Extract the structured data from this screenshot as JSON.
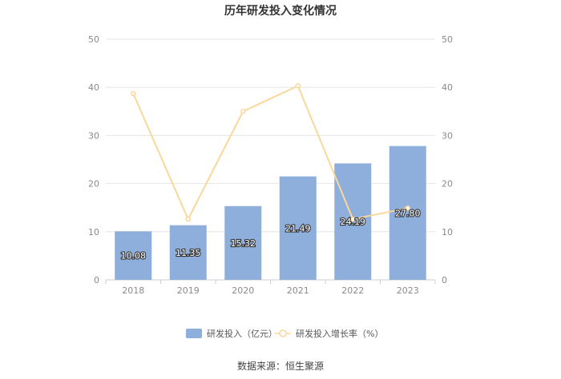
{
  "source_text": "数据来源：恒生聚源",
  "colors": {
    "bar": "#8eaedc",
    "line": "#fad79b",
    "grid": "#e6e6e6",
    "axis": "#cccccc"
  },
  "chart_data": {
    "type": "bar",
    "title": "历年研发投入变化情况",
    "categories": [
      "2018",
      "2019",
      "2020",
      "2021",
      "2022",
      "2023"
    ],
    "series": [
      {
        "name": "研发投入（亿元）",
        "type": "bar",
        "axis": "left",
        "values": [
          10.08,
          11.35,
          15.32,
          21.49,
          24.19,
          27.8
        ],
        "labels": [
          "10.08",
          "11.35",
          "15.32",
          "21.49",
          "24.19",
          "27.80"
        ]
      },
      {
        "name": "研发投入增长率（%）",
        "type": "line",
        "axis": "right",
        "values": [
          38.7,
          12.6,
          35.0,
          40.3,
          12.6,
          14.9
        ]
      }
    ],
    "y_left": {
      "lim": [
        0,
        50
      ],
      "ticks": [
        "0",
        "10",
        "20",
        "30",
        "40",
        "50"
      ]
    },
    "y_right": {
      "lim": [
        0,
        50
      ],
      "ticks": [
        "0",
        "10",
        "20",
        "30",
        "40",
        "50"
      ]
    },
    "grid": true,
    "legend_position": "bottom"
  }
}
